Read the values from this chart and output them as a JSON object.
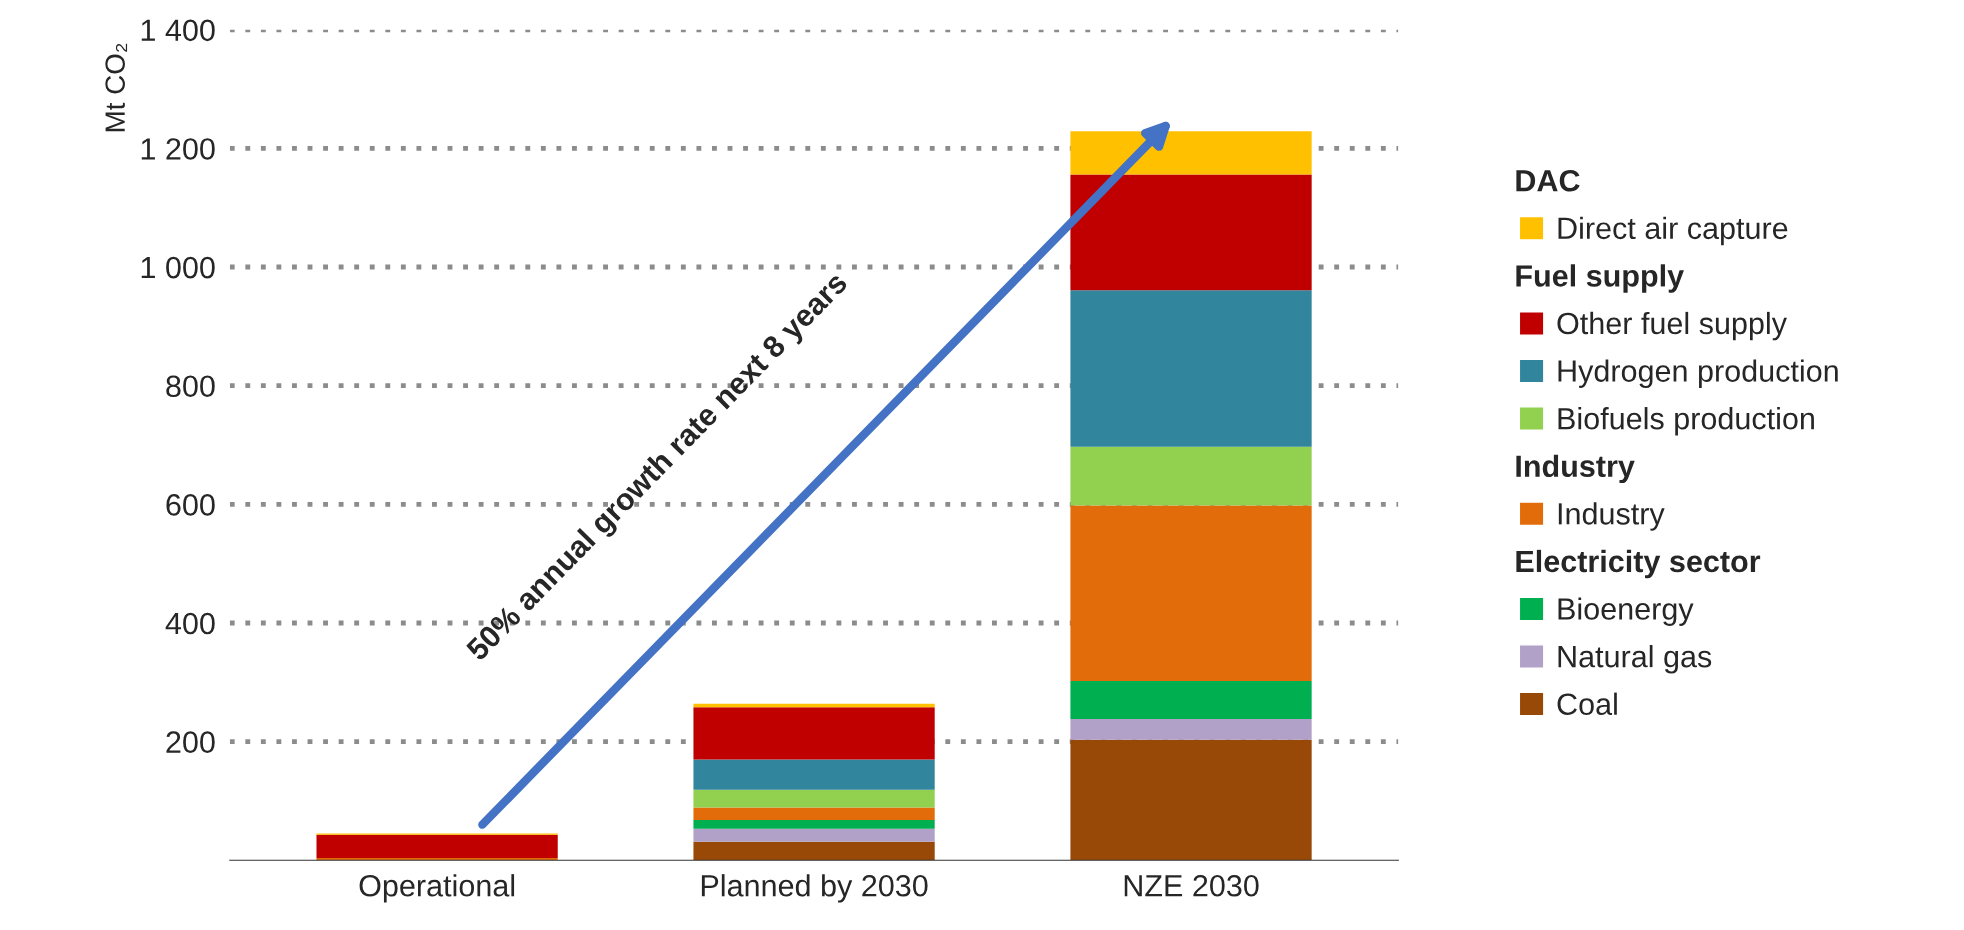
{
  "chart_data": {
    "type": "bar",
    "stacked": true,
    "categories": [
      "Operational",
      "Planned by 2030",
      "NZE 2030"
    ],
    "ylabel": "Mt CO₂",
    "ylim": [
      0,
      1400
    ],
    "yticks": [
      {
        "value": 200,
        "label": "200"
      },
      {
        "value": 400,
        "label": "400"
      },
      {
        "value": 600,
        "label": "600"
      },
      {
        "value": 800,
        "label": "800"
      },
      {
        "value": 1000,
        "label": "1 000"
      },
      {
        "value": 1200,
        "label": "1 200"
      },
      {
        "value": 1400,
        "label": "1 400"
      }
    ],
    "grid": "y",
    "legend": "right",
    "series": [
      {
        "name": "Coal",
        "color": "#984807",
        "values": [
          0,
          31,
          203
        ]
      },
      {
        "name": "Natural gas",
        "color": "#b1a0c7",
        "values": [
          0,
          22,
          35
        ]
      },
      {
        "name": "Bioenergy",
        "color": "#00b050",
        "values": [
          0,
          15,
          64
        ]
      },
      {
        "name": "Industry",
        "color": "#e36c0a",
        "values": [
          4,
          21,
          296
        ]
      },
      {
        "name": "Biofuels production",
        "color": "#92d050",
        "values": [
          0,
          30,
          99
        ]
      },
      {
        "name": "Hydrogen production",
        "color": "#31859c",
        "values": [
          0,
          51,
          264
        ]
      },
      {
        "name": "Other fuel supply",
        "color": "#c00000",
        "values": [
          39,
          88,
          195
        ]
      },
      {
        "name": "Direct air capture",
        "color": "#ffc000",
        "values": [
          2,
          6,
          73
        ]
      }
    ],
    "annotations": [
      "Electricity sector",
      "Industry",
      "Fuel supply",
      "DAC",
      "50% annual growth rate next 8 years"
    ]
  }
}
